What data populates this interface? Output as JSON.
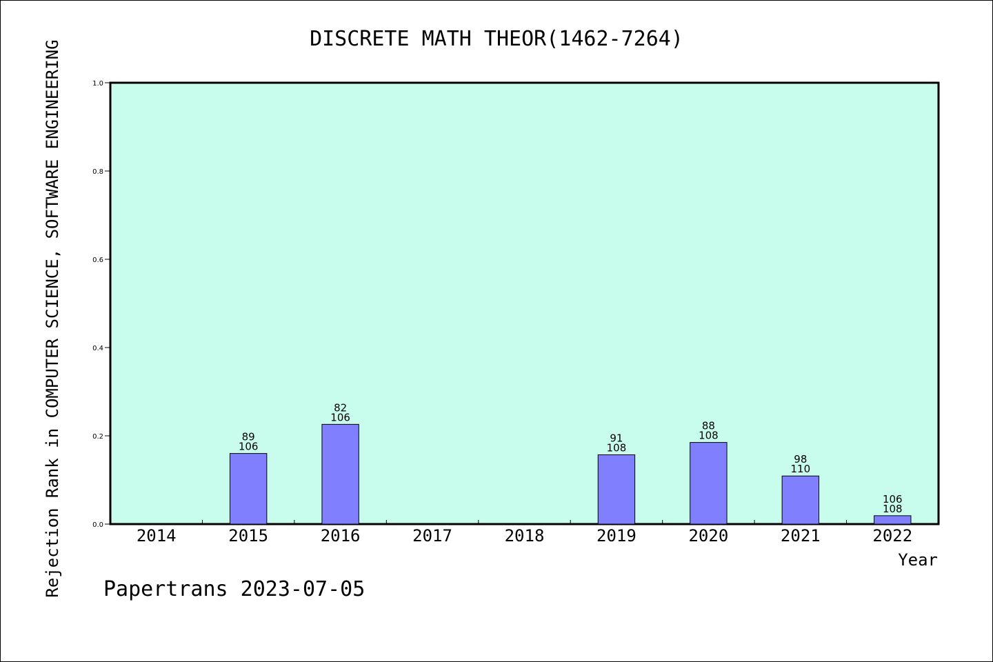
{
  "chart_data": {
    "type": "bar",
    "title": "DISCRETE MATH THEOR(1462-7264)",
    "xlabel": "Year",
    "ylabel": "Rejection Rank in COMPUTER SCIENCE, SOFTWARE ENGINEERING",
    "categories": [
      "2014",
      "2015",
      "2016",
      "2017",
      "2018",
      "2019",
      "2020",
      "2021",
      "2022"
    ],
    "values": [
      null,
      0.16,
      0.226,
      null,
      null,
      0.157,
      0.185,
      0.109,
      0.019
    ],
    "rank": [
      null,
      "89",
      "82",
      null,
      null,
      "91",
      "88",
      "98",
      "106"
    ],
    "total": [
      null,
      "106",
      "106",
      null,
      null,
      "108",
      "108",
      "110",
      "108"
    ],
    "ylim": [
      0,
      1.0
    ],
    "yticks": [
      "0.0",
      "0.2",
      "0.4",
      "0.6",
      "0.8",
      "1.0"
    ],
    "grid": false,
    "colors": {
      "plot_background": "#c8fced",
      "bar_fill": "#8080ff",
      "bar_stroke": "#000000"
    }
  },
  "footer": {
    "text": "Papertrans 2023-07-05"
  }
}
